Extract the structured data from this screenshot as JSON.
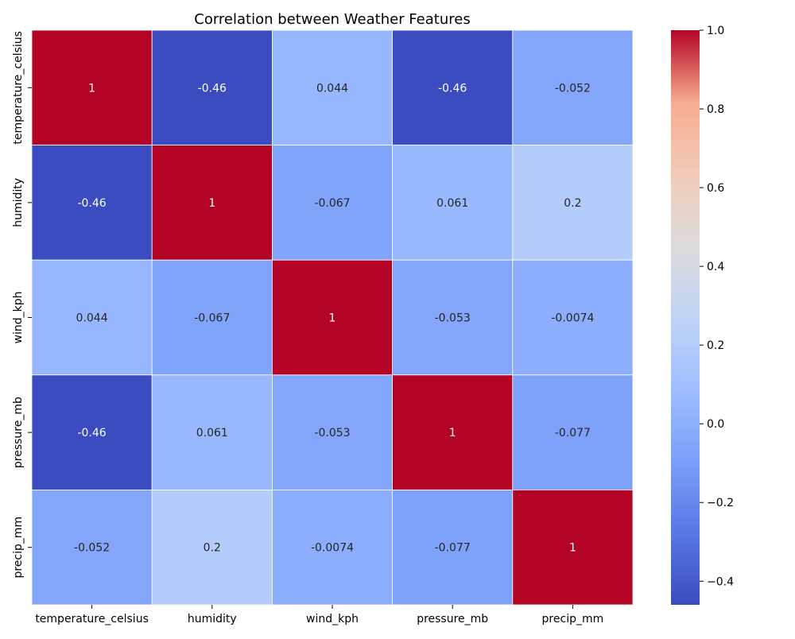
{
  "chart_data": {
    "type": "heatmap",
    "title": "Correlation between Weather Features",
    "xlabel": "",
    "ylabel": "",
    "row_labels": [
      "temperature_celsius",
      "humidity",
      "wind_kph",
      "pressure_mb",
      "precip_mm"
    ],
    "column_labels": [
      "temperature_celsius",
      "humidity",
      "wind_kph",
      "pressure_mb",
      "precip_mm"
    ],
    "values": [
      [
        1,
        -0.46,
        0.044,
        -0.46,
        -0.052
      ],
      [
        -0.46,
        1,
        -0.067,
        0.061,
        0.2
      ],
      [
        0.044,
        -0.067,
        1,
        -0.053,
        -0.0074
      ],
      [
        -0.46,
        0.061,
        -0.053,
        1,
        -0.077
      ],
      [
        -0.052,
        0.2,
        -0.0074,
        -0.077,
        1
      ]
    ],
    "cell_labels": [
      [
        "1",
        "-0.46",
        "0.044",
        "-0.46",
        "-0.052"
      ],
      [
        "-0.46",
        "1",
        "-0.067",
        "0.061",
        "0.2"
      ],
      [
        "0.044",
        "-0.067",
        "1",
        "-0.053",
        "-0.0074"
      ],
      [
        "-0.46",
        "0.061",
        "-0.053",
        "1",
        "-0.077"
      ],
      [
        "-0.052",
        "0.2",
        "-0.0074",
        "-0.077",
        "1"
      ]
    ],
    "colormap": "coolwarm",
    "colormap_stops": [
      [
        0.0,
        "#3b4cc0"
      ],
      [
        0.125,
        "#5977e3"
      ],
      [
        0.25,
        "#7b9ff9"
      ],
      [
        0.375,
        "#9ebeff"
      ],
      [
        0.5,
        "#c0d4f5"
      ],
      [
        0.625,
        "#dddcdc"
      ],
      [
        0.75,
        "#f2cbb7"
      ],
      [
        0.875,
        "#f7ac8e"
      ],
      [
        1.0,
        "#b40426"
      ]
    ],
    "colorbar_range": [
      -0.46,
      1.0
    ],
    "colorbar_ticks": [
      -0.4,
      -0.2,
      0.0,
      0.2,
      0.4,
      0.6,
      0.8,
      1.0
    ],
    "colorbar_tick_labels": [
      "−0.4",
      "−0.2",
      "0.0",
      "0.2",
      "0.4",
      "0.6",
      "0.8",
      "1.0"
    ],
    "grid": false,
    "legend": "colorbar-right"
  }
}
